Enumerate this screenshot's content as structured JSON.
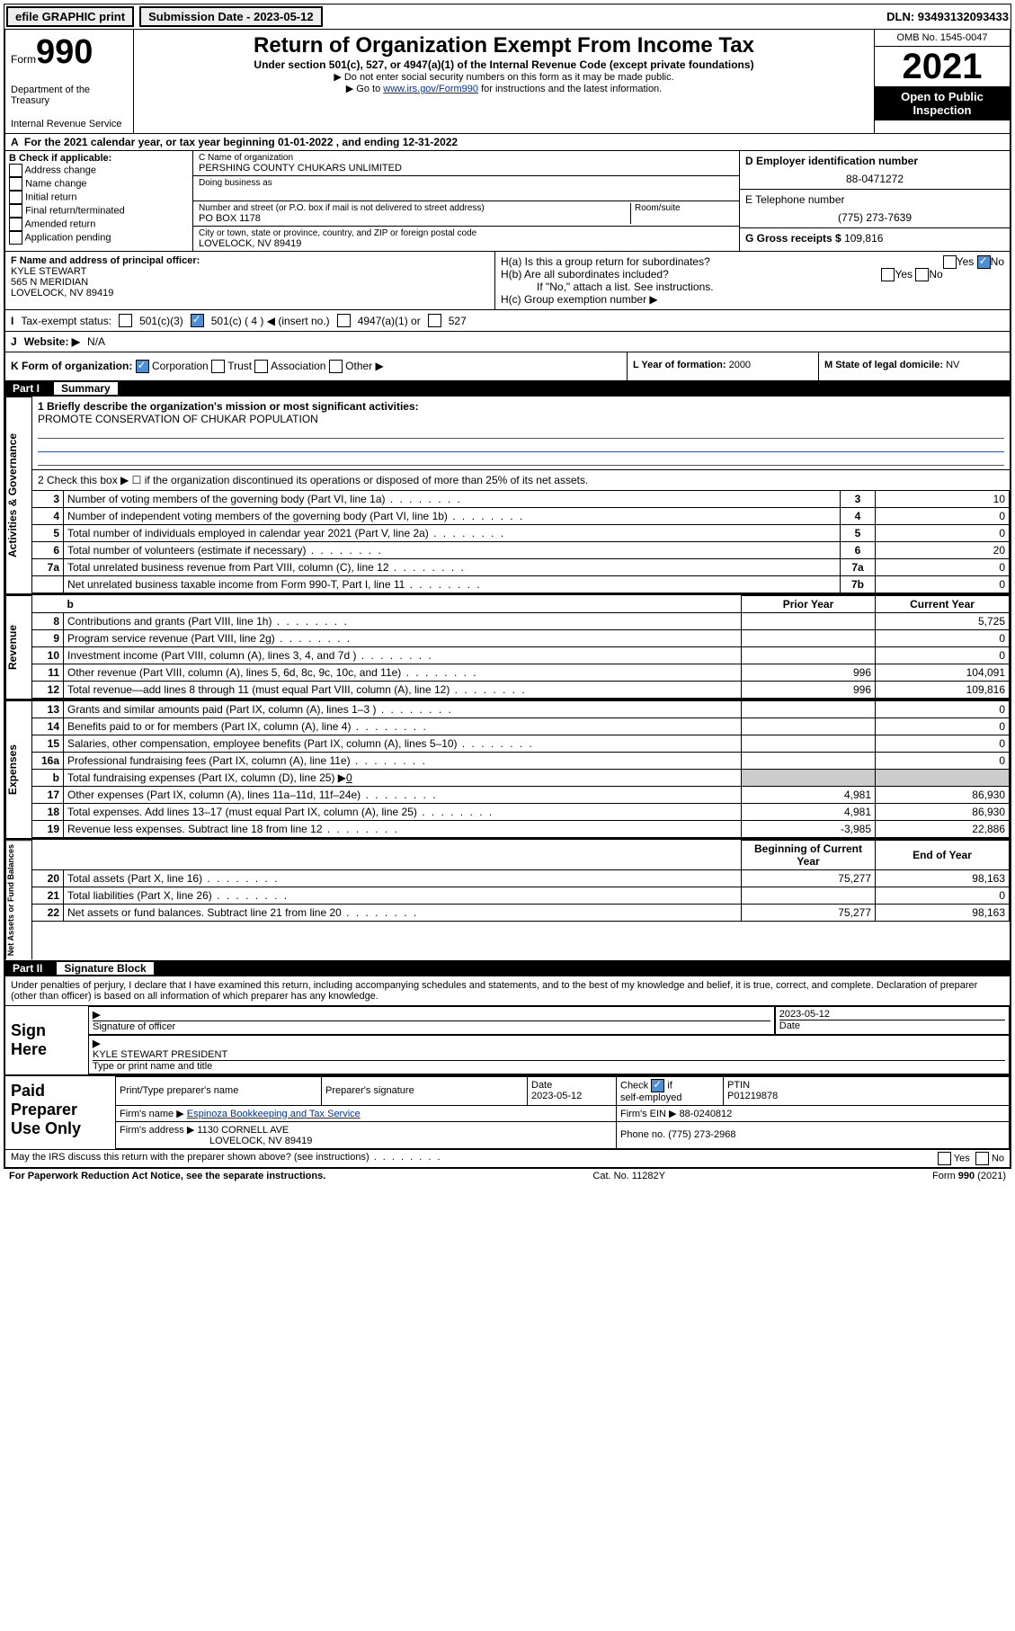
{
  "topbar": {
    "efile": "efile GRAPHIC print",
    "submission_label": "Submission Date - 2023-05-12",
    "dln_label": "DLN: 93493132093433"
  },
  "header": {
    "form_word": "Form",
    "form_num": "990",
    "department": "Department of the Treasury",
    "irs": "Internal Revenue Service",
    "title": "Return of Organization Exempt From Income Tax",
    "subtitle": "Under section 501(c), 527, or 4947(a)(1) of the Internal Revenue Code (except private foundations)",
    "note1": "▶ Do not enter social security numbers on this form as it may be made public.",
    "note2_pre": "▶ Go to ",
    "note2_link": "www.irs.gov/Form990",
    "note2_post": " for instructions and the latest information.",
    "omb": "OMB No. 1545-0047",
    "year": "2021",
    "open": "Open to Public Inspection"
  },
  "period": "For the 2021 calendar year, or tax year beginning 01-01-2022    , and ending 12-31-2022",
  "boxB": {
    "title": "B Check if applicable:",
    "opts": [
      "Address change",
      "Name change",
      "Initial return",
      "Final return/terminated",
      "Amended return",
      "Application pending"
    ]
  },
  "boxC": {
    "name_label": "C Name of organization",
    "name": "PERSHING COUNTY CHUKARS UNLIMITED",
    "dba_label": "Doing business as",
    "dba": "",
    "addr_label": "Number and street (or P.O. box if mail is not delivered to street address)",
    "room_label": "Room/suite",
    "addr": "PO BOX 1178",
    "city_label": "City or town, state or province, country, and ZIP or foreign postal code",
    "city": "LOVELOCK, NV  89419"
  },
  "boxD": {
    "label": "D Employer identification number",
    "value": "88-0471272"
  },
  "boxE": {
    "label": "E Telephone number",
    "value": "(775) 273-7639"
  },
  "boxG": {
    "label": "G Gross receipts $",
    "value": "109,816"
  },
  "boxF": {
    "label": "F  Name and address of principal officer:",
    "name": "KYLE STEWART",
    "addr1": "565 N MERIDIAN",
    "addr2": "LOVELOCK, NV  89419"
  },
  "boxH": {
    "a": "H(a)  Is this a group return for subordinates?",
    "b": "H(b)  Are all subordinates included?",
    "b_note": "If \"No,\" attach a list. See instructions.",
    "c": "H(c)  Group exemption number ▶",
    "yes": "Yes",
    "no": "No"
  },
  "boxI": {
    "label": "I",
    "text": "Tax-exempt status:",
    "opts": [
      "501(c)(3)",
      "501(c) ( 4 ) ◀ (insert no.)",
      "4947(a)(1) or",
      "527"
    ]
  },
  "boxJ": {
    "label": "J",
    "text": "Website: ▶",
    "value": "N/A"
  },
  "boxK": {
    "label": "K Form of organization:",
    "opts": [
      "Corporation",
      "Trust",
      "Association",
      "Other ▶"
    ]
  },
  "boxL": {
    "label": "L Year of formation:",
    "value": "2000"
  },
  "boxM": {
    "label": "M State of legal domicile:",
    "value": "NV"
  },
  "part1": {
    "num": "Part I",
    "title": "Summary"
  },
  "mission": {
    "label": "1  Briefly describe the organization's mission or most significant activities:",
    "text": "PROMOTE CONSERVATION OF CHUKAR POPULATION"
  },
  "line2": "2   Check this box ▶ ☐  if the organization discontinued its operations or disposed of more than 25% of its net assets.",
  "gov_lines": [
    {
      "n": "3",
      "desc": "Number of voting members of the governing body (Part VI, line 1a)",
      "lab": "3",
      "val": "10"
    },
    {
      "n": "4",
      "desc": "Number of independent voting members of the governing body (Part VI, line 1b)",
      "lab": "4",
      "val": "0"
    },
    {
      "n": "5",
      "desc": "Total number of individuals employed in calendar year 2021 (Part V, line 2a)",
      "lab": "5",
      "val": "0"
    },
    {
      "n": "6",
      "desc": "Total number of volunteers (estimate if necessary)",
      "lab": "6",
      "val": "20"
    },
    {
      "n": "7a",
      "desc": "Total unrelated business revenue from Part VIII, column (C), line 12",
      "lab": "7a",
      "val": "0"
    },
    {
      "n": "",
      "desc": "Net unrelated business taxable income from Form 990-T, Part I, line 11",
      "lab": "7b",
      "val": "0"
    }
  ],
  "year_header": {
    "prior": "Prior Year",
    "current": "Current Year"
  },
  "rev_lines": [
    {
      "n": "8",
      "desc": "Contributions and grants (Part VIII, line 1h)",
      "p": "",
      "c": "5,725"
    },
    {
      "n": "9",
      "desc": "Program service revenue (Part VIII, line 2g)",
      "p": "",
      "c": "0"
    },
    {
      "n": "10",
      "desc": "Investment income (Part VIII, column (A), lines 3, 4, and 7d )",
      "p": "",
      "c": "0"
    },
    {
      "n": "11",
      "desc": "Other revenue (Part VIII, column (A), lines 5, 6d, 8c, 9c, 10c, and 11e)",
      "p": "996",
      "c": "104,091"
    },
    {
      "n": "12",
      "desc": "Total revenue—add lines 8 through 11 (must equal Part VIII, column (A), line 12)",
      "p": "996",
      "c": "109,816"
    }
  ],
  "exp_lines": [
    {
      "n": "13",
      "desc": "Grants and similar amounts paid (Part IX, column (A), lines 1–3 )",
      "p": "",
      "c": "0"
    },
    {
      "n": "14",
      "desc": "Benefits paid to or for members (Part IX, column (A), line 4)",
      "p": "",
      "c": "0"
    },
    {
      "n": "15",
      "desc": "Salaries, other compensation, employee benefits (Part IX, column (A), lines 5–10)",
      "p": "",
      "c": "0"
    },
    {
      "n": "16a",
      "desc": "Professional fundraising fees (Part IX, column (A), line 11e)",
      "p": "",
      "c": "0"
    }
  ],
  "line16b": {
    "n": "b",
    "desc": "Total fundraising expenses (Part IX, column (D), line 25) ▶",
    "val": "0"
  },
  "exp_lines2": [
    {
      "n": "17",
      "desc": "Other expenses (Part IX, column (A), lines 11a–11d, 11f–24e)",
      "p": "4,981",
      "c": "86,930"
    },
    {
      "n": "18",
      "desc": "Total expenses. Add lines 13–17 (must equal Part IX, column (A), line 25)",
      "p": "4,981",
      "c": "86,930"
    },
    {
      "n": "19",
      "desc": "Revenue less expenses. Subtract line 18 from line 12",
      "p": "-3,985",
      "c": "22,886"
    }
  ],
  "na_header": {
    "begin": "Beginning of Current Year",
    "end": "End of Year"
  },
  "na_lines": [
    {
      "n": "20",
      "desc": "Total assets (Part X, line 16)",
      "p": "75,277",
      "c": "98,163"
    },
    {
      "n": "21",
      "desc": "Total liabilities (Part X, line 26)",
      "p": "",
      "c": "0"
    },
    {
      "n": "22",
      "desc": "Net assets or fund balances. Subtract line 21 from line 20",
      "p": "75,277",
      "c": "98,163"
    }
  ],
  "vlabels": {
    "gov": "Activities & Governance",
    "rev": "Revenue",
    "exp": "Expenses",
    "na": "Net Assets or Fund Balances"
  },
  "part2": {
    "num": "Part II",
    "title": "Signature Block"
  },
  "sig_intro": "Under penalties of perjury, I declare that I have examined this return, including accompanying schedules and statements, and to the best of my knowledge and belief, it is true, correct, and complete. Declaration of preparer (other than officer) is based on all information of which preparer has any knowledge.",
  "sign": {
    "here": "Sign Here",
    "sig_of_officer": "Signature of officer",
    "date_label": "Date",
    "date": "2023-05-12",
    "name": "KYLE STEWART PRESIDENT",
    "name_label": "Type or print name and title"
  },
  "paid": {
    "label": "Paid Preparer Use Only",
    "h1": "Print/Type preparer's name",
    "h2": "Preparer's signature",
    "h3": "Date",
    "h3v": "2023-05-12",
    "h4": "Check ☑ if self-employed",
    "h5": "PTIN",
    "h5v": "P01219878",
    "firm_label": "Firm's name    ▶",
    "firm": "Espinoza Bookkeeping and Tax Service",
    "ein_label": "Firm's EIN ▶",
    "ein": "88-0240812",
    "addr_label": "Firm's address ▶",
    "addr1": "1130 CORNELL AVE",
    "addr2": "LOVELOCK, NV  89419",
    "phone_label": "Phone no.",
    "phone": "(775) 273-2968"
  },
  "footer": {
    "discuss": "May the IRS discuss this return with the preparer shown above? (see instructions)",
    "yes": "Yes",
    "no": "No",
    "paperwork": "For Paperwork Reduction Act Notice, see the separate instructions.",
    "cat": "Cat. No. 11282Y",
    "form": "Form 990 (2021)"
  }
}
